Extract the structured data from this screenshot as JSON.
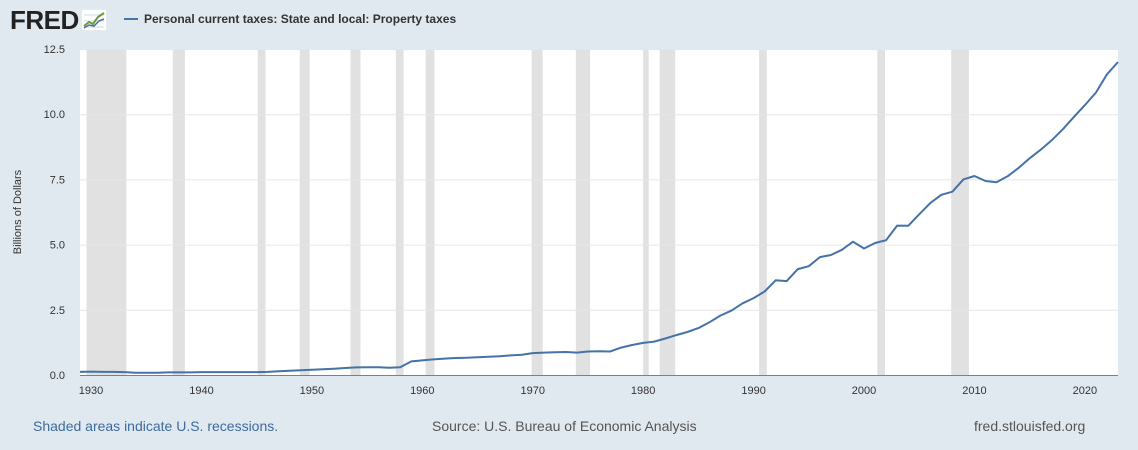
{
  "header": {
    "logo_text": "FRED",
    "logo_icon": "line-chart-icon"
  },
  "chart_data": {
    "type": "line",
    "title": "",
    "ylabel": "Billions of Dollars",
    "xlabel": "",
    "xlim": [
      1929,
      2023
    ],
    "ylim": [
      0,
      12.5
    ],
    "y_ticks": [
      "0.0",
      "2.5",
      "5.0",
      "7.5",
      "10.0",
      "12.5"
    ],
    "x_ticks": [
      "1930",
      "1940",
      "1950",
      "1960",
      "1970",
      "1980",
      "1990",
      "2000",
      "2010",
      "2020"
    ],
    "grid": true,
    "legend_position": "top-left",
    "series": [
      {
        "name": "Personal current taxes: State and local: Property taxes",
        "color": "#4572a7",
        "x": [
          1929,
          1930,
          1931,
          1932,
          1933,
          1934,
          1935,
          1936,
          1937,
          1938,
          1939,
          1940,
          1941,
          1942,
          1943,
          1944,
          1945,
          1946,
          1947,
          1948,
          1949,
          1950,
          1951,
          1952,
          1953,
          1954,
          1955,
          1956,
          1957,
          1958,
          1959,
          1960,
          1961,
          1962,
          1963,
          1964,
          1965,
          1966,
          1967,
          1968,
          1969,
          1970,
          1971,
          1972,
          1973,
          1974,
          1975,
          1976,
          1977,
          1978,
          1979,
          1980,
          1981,
          1982,
          1983,
          1984,
          1985,
          1986,
          1987,
          1988,
          1989,
          1990,
          1991,
          1992,
          1993,
          1994,
          1995,
          1996,
          1997,
          1998,
          1999,
          2000,
          2001,
          2002,
          2003,
          2004,
          2005,
          2006,
          2007,
          2008,
          2009,
          2010,
          2011,
          2012,
          2013,
          2014,
          2015,
          2016,
          2017,
          2018,
          2019,
          2020,
          2021,
          2022,
          2023
        ],
        "values": [
          0.12,
          0.13,
          0.12,
          0.12,
          0.11,
          0.09,
          0.09,
          0.09,
          0.1,
          0.1,
          0.1,
          0.11,
          0.11,
          0.11,
          0.11,
          0.11,
          0.11,
          0.12,
          0.14,
          0.16,
          0.18,
          0.2,
          0.22,
          0.24,
          0.27,
          0.29,
          0.3,
          0.3,
          0.28,
          0.3,
          0.52,
          0.56,
          0.6,
          0.63,
          0.65,
          0.66,
          0.68,
          0.7,
          0.72,
          0.75,
          0.78,
          0.84,
          0.86,
          0.87,
          0.88,
          0.86,
          0.9,
          0.91,
          0.9,
          1.05,
          1.15,
          1.23,
          1.28,
          1.4,
          1.53,
          1.65,
          1.8,
          2.02,
          2.28,
          2.47,
          2.75,
          2.95,
          3.2,
          3.63,
          3.6,
          4.06,
          4.17,
          4.52,
          4.6,
          4.8,
          5.11,
          4.85,
          5.06,
          5.17,
          5.73,
          5.72,
          6.16,
          6.59,
          6.91,
          7.03,
          7.5,
          7.63,
          7.44,
          7.39,
          7.62,
          7.94,
          8.31,
          8.64,
          9.0,
          9.42,
          9.89,
          10.35,
          10.83,
          11.53,
          12.0
        ]
      }
    ],
    "recessions": [
      [
        1929.6,
        1933.2
      ],
      [
        1937.4,
        1938.5
      ],
      [
        1945.1,
        1945.8
      ],
      [
        1948.9,
        1949.8
      ],
      [
        1953.5,
        1954.4
      ],
      [
        1957.6,
        1958.3
      ],
      [
        1960.3,
        1961.1
      ],
      [
        1969.9,
        1970.9
      ],
      [
        1973.9,
        1975.2
      ],
      [
        1980.0,
        1980.5
      ],
      [
        1981.5,
        1982.9
      ],
      [
        1990.5,
        1991.2
      ],
      [
        2001.2,
        2001.9
      ],
      [
        2007.9,
        2009.5
      ]
    ]
  },
  "footer": {
    "recession_note": "Shaded areas indicate U.S. recessions.",
    "source": "Source: U.S. Bureau of Economic Analysis",
    "site": "fred.stlouisfed.org"
  }
}
